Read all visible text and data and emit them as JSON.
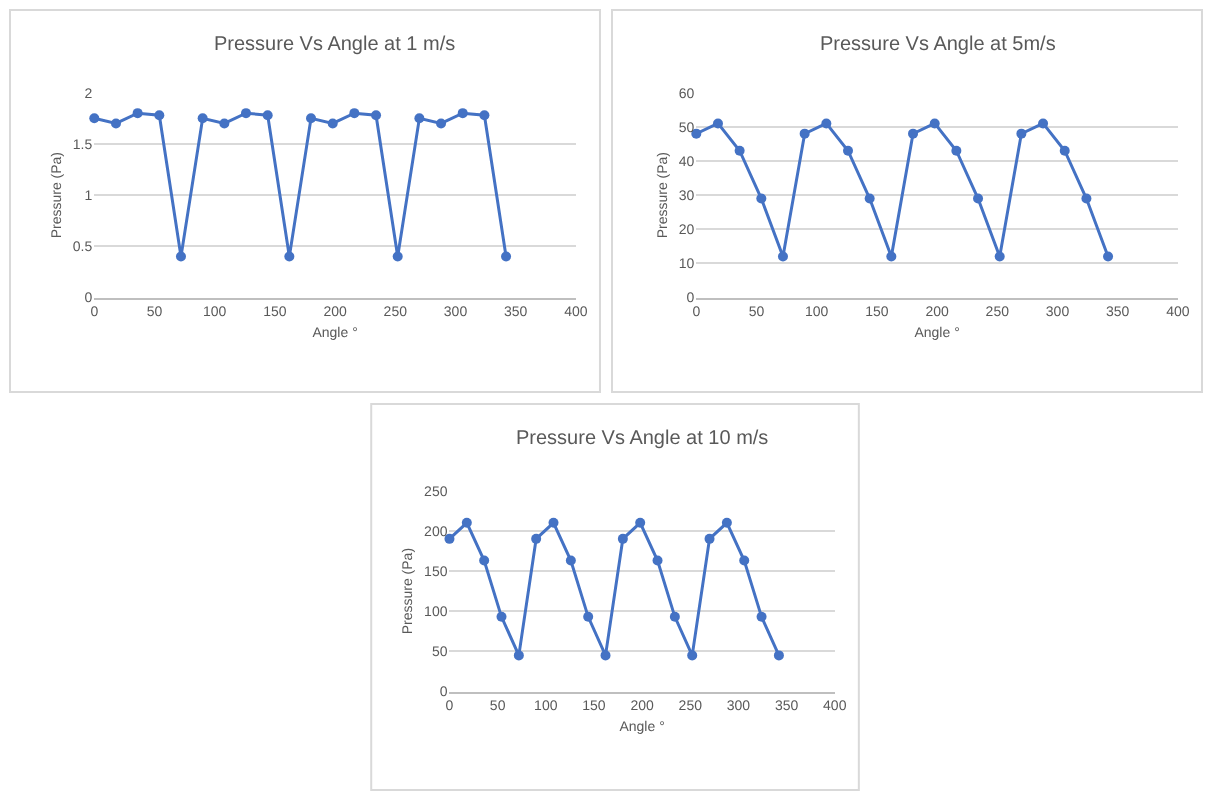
{
  "chart_data": [
    {
      "type": "line",
      "title": "Pressure Vs Angle at 1 m/s",
      "xlabel": "Angle °",
      "ylabel": "Pressure (Pa)",
      "x": [
        0,
        18,
        36,
        54,
        72,
        90,
        108,
        126,
        144,
        162,
        180,
        198,
        216,
        234,
        252,
        270,
        288,
        306,
        324,
        342
      ],
      "series": [
        {
          "color": "#4472c4",
          "values": [
            1.75,
            1.7,
            1.8,
            1.78,
            0.4,
            1.75,
            1.7,
            1.8,
            1.78,
            0.4,
            1.75,
            1.7,
            1.8,
            1.78,
            0.4,
            1.75,
            1.7,
            1.8,
            1.78,
            0.4
          ]
        }
      ],
      "xlim": [
        0,
        400
      ],
      "xticks": [
        0,
        50,
        100,
        150,
        200,
        250,
        300,
        350,
        400
      ],
      "ylim": [
        0,
        2
      ],
      "yticks": [
        0,
        0.5,
        1,
        1.5,
        2
      ],
      "grid": "y",
      "marker": "circle",
      "line_style": "solid"
    },
    {
      "type": "line",
      "title": "Pressure Vs Angle at 5m/s",
      "xlabel": "Angle °",
      "ylabel": "Pressure (Pa)",
      "x": [
        0,
        18,
        36,
        54,
        72,
        90,
        108,
        126,
        144,
        162,
        180,
        198,
        216,
        234,
        252,
        270,
        288,
        306,
        324,
        342
      ],
      "series": [
        {
          "color": "#4472c4",
          "values": [
            48,
            51,
            43,
            29,
            12,
            48,
            51,
            43,
            29,
            12,
            48,
            51,
            43,
            29,
            12,
            48,
            51,
            43,
            29,
            12
          ]
        }
      ],
      "xlim": [
        0,
        400
      ],
      "xticks": [
        0,
        50,
        100,
        150,
        200,
        250,
        300,
        350,
        400
      ],
      "ylim": [
        0,
        60
      ],
      "yticks": [
        0,
        10,
        20,
        30,
        40,
        50,
        60
      ],
      "grid": "y",
      "marker": "circle",
      "line_style": "solid"
    },
    {
      "type": "line",
      "title": "Pressure Vs Angle at 10 m/s",
      "xlabel": "Angle °",
      "ylabel": "Pressure (Pa)",
      "x": [
        0,
        18,
        36,
        54,
        72,
        90,
        108,
        126,
        144,
        162,
        180,
        198,
        216,
        234,
        252,
        270,
        288,
        306,
        324,
        342
      ],
      "series": [
        {
          "color": "#4472c4",
          "values": [
            190,
            210,
            163,
            93,
            45,
            190,
            210,
            163,
            93,
            45,
            190,
            210,
            163,
            93,
            45,
            190,
            210,
            163,
            93,
            45
          ]
        }
      ],
      "xlim": [
        0,
        400
      ],
      "xticks": [
        0,
        50,
        100,
        150,
        200,
        250,
        300,
        350,
        400
      ],
      "ylim": [
        0,
        250
      ],
      "yticks": [
        0,
        50,
        100,
        150,
        200,
        250
      ],
      "grid": "y",
      "marker": "circle",
      "line_style": "solid"
    }
  ]
}
